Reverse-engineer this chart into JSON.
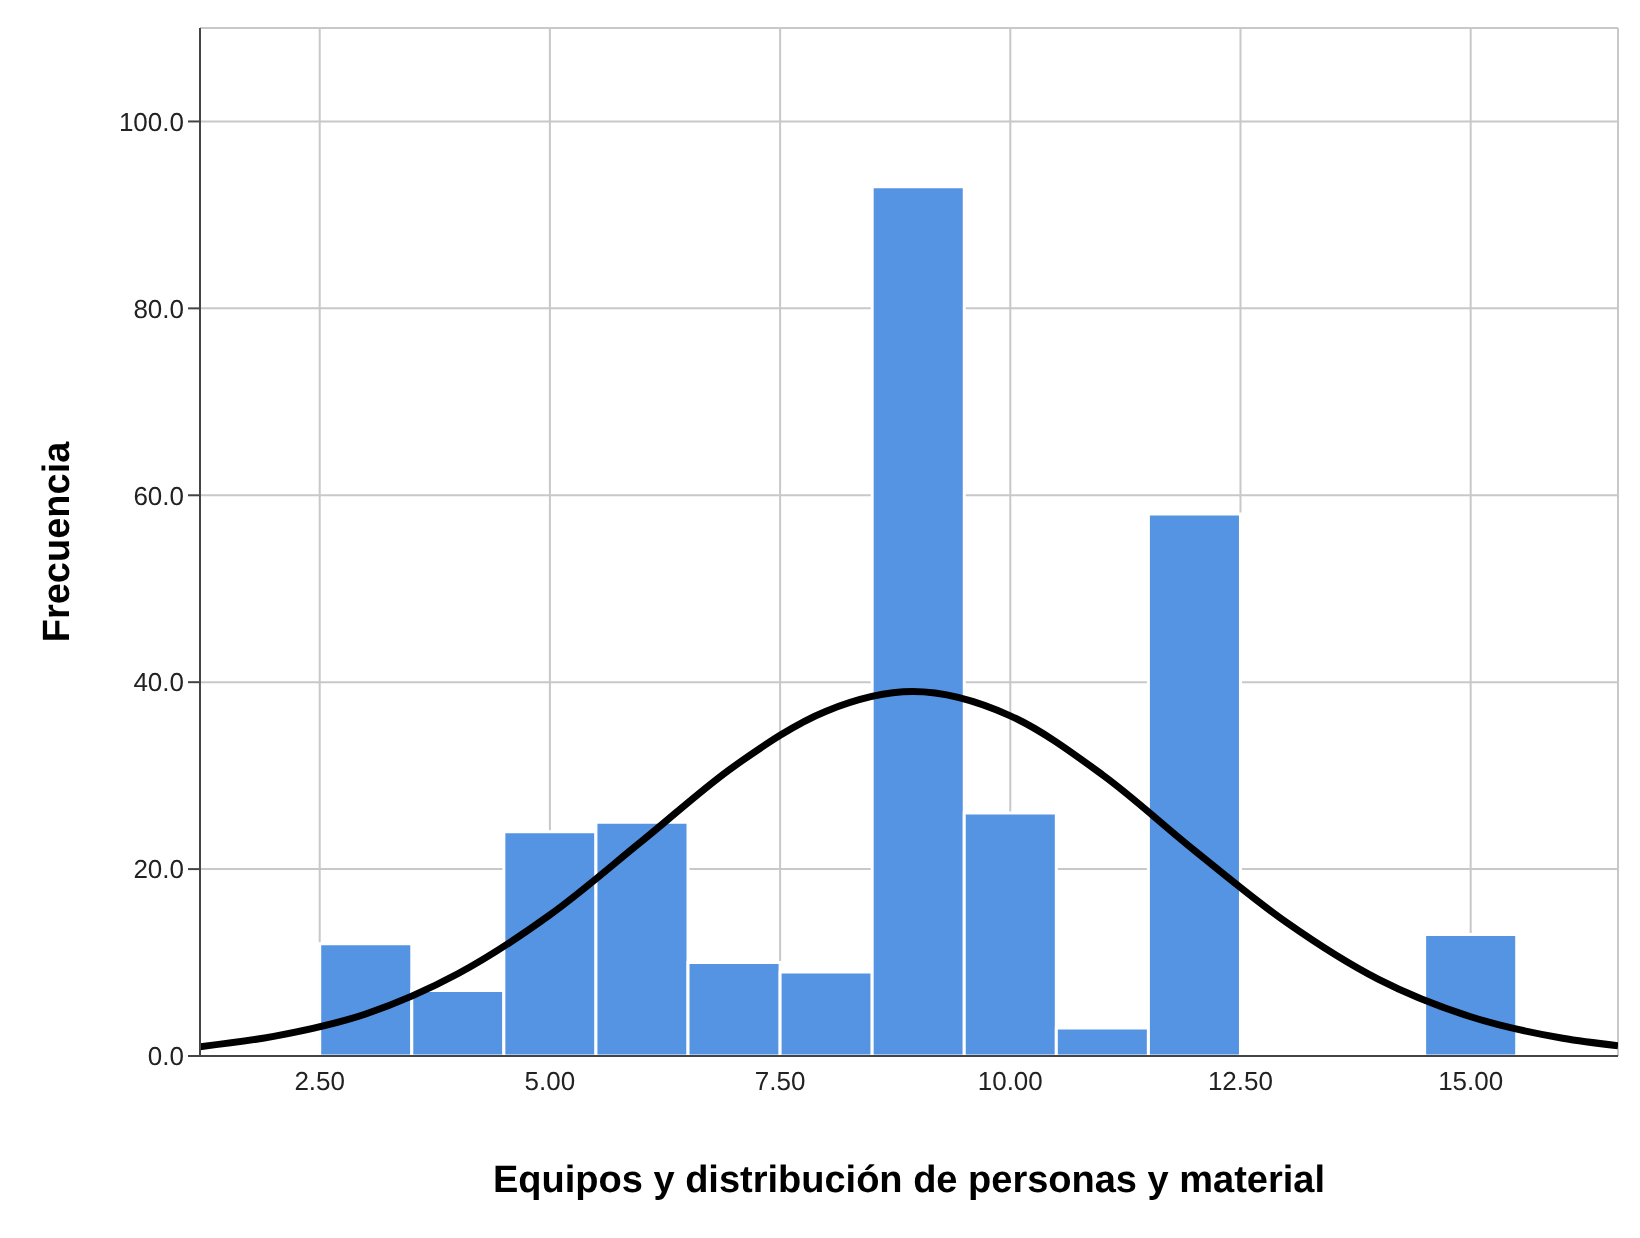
{
  "chart_data": {
    "type": "histogram",
    "xlabel": "Equipos y distribución de personas y material",
    "ylabel": "Frecuencia",
    "bins": [
      2.5,
      3.5,
      4.5,
      5.5,
      6.5,
      7.5,
      8.5,
      9.5,
      10.5,
      11.5,
      12.5,
      13.5,
      14.5,
      15.5
    ],
    "values": [
      12,
      7,
      24,
      25,
      10,
      9,
      93,
      26,
      3,
      58,
      0,
      0,
      13
    ],
    "color": "#5593e3",
    "series": [
      {
        "type": "line",
        "color": "#000000",
        "x": [
          1.2,
          2,
          3,
          4,
          5,
          6,
          7,
          8,
          8.94,
          10,
          11,
          12,
          13,
          14,
          15,
          16,
          16.6
        ],
        "values": [
          1.0,
          2.1,
          4.5,
          8.8,
          15.1,
          23.0,
          31.0,
          36.9,
          39,
          36.4,
          30.1,
          22.0,
          14.3,
          8.2,
          4.2,
          1.9,
          1.1
        ]
      }
    ],
    "xlim": [
      1.2,
      16.6
    ],
    "ylim": [
      0,
      110
    ],
    "xticks": [
      {
        "value": 2.5,
        "label": "2.50"
      },
      {
        "value": 5,
        "label": "5.00"
      },
      {
        "value": 7.5,
        "label": "7.50"
      },
      {
        "value": 10,
        "label": "10.00"
      },
      {
        "value": 12.5,
        "label": "12.50"
      },
      {
        "value": 15,
        "label": "15.00"
      }
    ],
    "yticks": [
      {
        "value": 0,
        "label": "0.0"
      },
      {
        "value": 20,
        "label": "20.0"
      },
      {
        "value": 40,
        "label": "40.0"
      },
      {
        "value": 60,
        "label": "60.0"
      },
      {
        "value": 80,
        "label": "80.0"
      },
      {
        "value": 100,
        "label": "100.0"
      }
    ],
    "grid": true,
    "marker": "none",
    "line_style": "solid"
  }
}
